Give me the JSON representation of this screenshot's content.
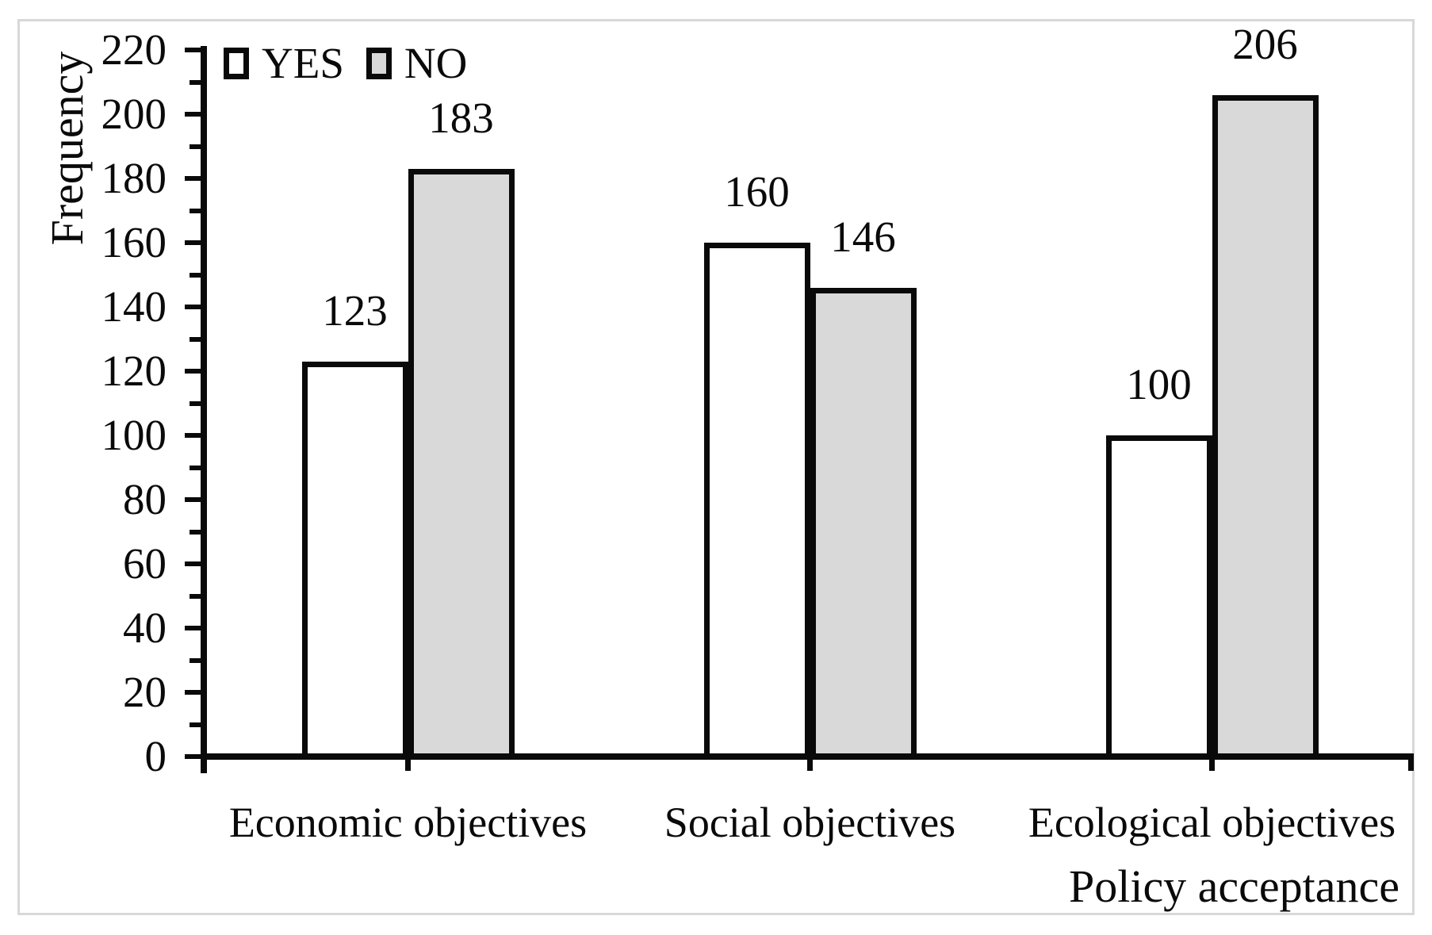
{
  "chart_data": {
    "type": "bar",
    "title": "",
    "categories": [
      "Economic objectives",
      "Social objectives",
      "Ecological objectives"
    ],
    "series": [
      {
        "name": "YES",
        "fill": "#ffffff",
        "values": [
          123,
          160,
          100
        ]
      },
      {
        "name": "NO",
        "fill": "#d9d9d9",
        "values": [
          183,
          146,
          206
        ]
      }
    ],
    "bar_labels_shown": true,
    "xlabel": "Policy acceptance",
    "ylabel": "Frequency",
    "ylim": [
      0,
      220
    ],
    "yticks": [
      0,
      20,
      40,
      60,
      80,
      100,
      120,
      140,
      160,
      180,
      200,
      220
    ],
    "yminor_step": 10,
    "grid": false,
    "legend_position": "top-left",
    "colors": {
      "axis": "#0a0a0a",
      "yes_fill": "#ffffff",
      "no_fill": "#d9d9d9",
      "frame_border": "#d8d8d8",
      "text": "#0a0a0a"
    }
  }
}
